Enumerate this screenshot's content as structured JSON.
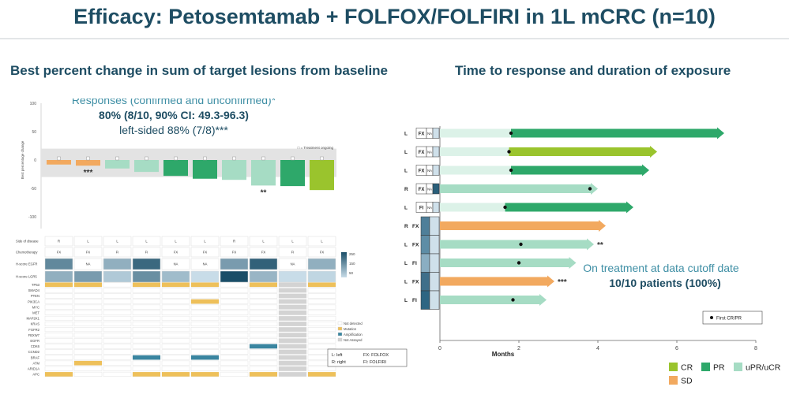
{
  "title": "Efficacy: Petosemtamab + FOLFOX/FOLFIRI in 1L mCRC (n=10)",
  "left_subtitle": "Best percent change in sum of target lesions from baseline",
  "right_subtitle": "Time to response and duration of exposure",
  "responses": {
    "heading": "Responses (confirmed and unconfirmed)*",
    "orr": "80% (8/10, 90% CI: 49.3-96.3)",
    "left_sided": "left-sided 88% (7/8)***"
  },
  "on_treatment": {
    "line1": "On treatment at data cutoff date",
    "line2": "10/10 patients (100%)"
  },
  "colors": {
    "CR": "#9ac42d",
    "PR": "#2ea86a",
    "uPR": "#a6dcc4",
    "SD": "#f2a95f",
    "title": "#1e4d63",
    "accent": "#3f8fa5",
    "mut_yellow": "#eec05a",
    "amp_teal": "#3a85a0",
    "not_assayed": "#d3d3d3"
  },
  "chart_data": [
    {
      "type": "bar",
      "title": "",
      "xlabel": "",
      "ylabel": "Best percentage change",
      "ylim": [
        -100,
        100
      ],
      "yticks": [
        "100",
        "50",
        "0",
        "-50",
        "-100"
      ],
      "values": [
        -8,
        -10,
        -15,
        -21,
        -28,
        -33,
        -35,
        -45,
        -46,
        -53
      ],
      "colors": [
        "SD",
        "SD",
        "uPR",
        "uPR",
        "PR",
        "PR",
        "uPR",
        "uPR",
        "PR",
        "CR"
      ],
      "annotations": [
        {
          "index": 1,
          "text": "***"
        },
        {
          "index": 7,
          "text": "**"
        }
      ],
      "ongoing_marker": "□ = Treatment ongoing",
      "reference_band": [
        -30,
        20
      ],
      "table": {
        "rows": [
          {
            "label": "Side of disease",
            "values": [
              "R",
              "L",
              "L",
              "L",
              "L",
              "L",
              "R",
              "L",
              "L",
              "L"
            ]
          },
          {
            "label": "Chemotherapy",
            "values": [
              "FX",
              "FX",
              "FI",
              "FI",
              "FX",
              "FX",
              "FX",
              "FX",
              "FI",
              "FX"
            ]
          },
          {
            "label": "H-score EGFR",
            "values": [
              180,
              "NA",
              120,
              230,
              "NA",
              "NA",
              150,
              240,
              "NA",
              120
            ]
          },
          {
            "label": "H-score LGR5",
            "values": [
              120,
              150,
              80,
              170,
              100,
              40,
              280,
              110,
              50,
              60
            ]
          }
        ],
        "scale_labels": [
          "250",
          "150",
          "50"
        ]
      },
      "genes": [
        "TP53",
        "SMAD4",
        "PTEN",
        "PIK3CA",
        "MYC",
        "MET",
        "MAP2K1",
        "KRAS",
        "FGFR2",
        "FBXW7",
        "EGFR",
        "CDK6",
        "CCND2",
        "BRAF",
        "ATM",
        "ARID1A",
        "APC"
      ],
      "alterations": [
        {
          "gene": "TP53",
          "patients": [
            0,
            1,
            3,
            4,
            5,
            7,
            9
          ],
          "type": "Mutation"
        },
        {
          "gene": "PIK3CA",
          "patients": [
            5
          ],
          "type": "Mutation"
        },
        {
          "gene": "CDK6",
          "patients": [
            7
          ],
          "type": "Amplification"
        },
        {
          "gene": "BRAF",
          "patients": [
            3,
            5
          ],
          "type": "Amplification"
        },
        {
          "gene": "ATM",
          "patients": [
            1
          ],
          "type": "Mutation"
        },
        {
          "gene": "APC",
          "patients": [
            0,
            3,
            4,
            5,
            7,
            9
          ],
          "type": "Mutation"
        }
      ],
      "not_assayed_patient": 8,
      "mutation_legend": [
        "Not detected",
        "Mutation",
        "Amplification",
        "Not Assayed"
      ],
      "abbrev": {
        "left": "L: left",
        "right": "R: right",
        "fx": "FX: FOLFOX",
        "fi": "FI: FOLFIRI"
      }
    },
    {
      "type": "bar",
      "subtype": "swimmer",
      "xlabel": "Months",
      "xlim": [
        0,
        8
      ],
      "xticks": [
        "0",
        "2",
        "4",
        "6",
        "8"
      ],
      "patients": [
        {
          "side": "L",
          "chemo": "FX",
          "egfr": "NA",
          "end": 7.2,
          "first": 1.8,
          "final": "PR",
          "annot": ""
        },
        {
          "side": "L",
          "chemo": "FX",
          "egfr": "NA",
          "end": 5.5,
          "first": 1.75,
          "final": "CR",
          "annot": ""
        },
        {
          "side": "L",
          "chemo": "FX",
          "egfr": "NA",
          "end": 5.3,
          "first": 1.8,
          "final": "PR",
          "annot": ""
        },
        {
          "side": "R",
          "chemo": "FX",
          "egfr": "NA",
          "end": 4.0,
          "first": 3.8,
          "final": "uPR",
          "annot": ""
        },
        {
          "side": "L",
          "chemo": "FI",
          "egfr": "NA",
          "end": 4.9,
          "first": 1.65,
          "final": "PR",
          "annot": ""
        },
        {
          "side": "R",
          "chemo": "FX",
          "egfr": "",
          "end": 4.2,
          "first": null,
          "final": "SD",
          "annot": ""
        },
        {
          "side": "L",
          "chemo": "FX",
          "egfr": "",
          "end": 3.9,
          "first": 2.05,
          "final": "uPR",
          "annot": "**"
        },
        {
          "side": "L",
          "chemo": "FI",
          "egfr": "",
          "end": 3.45,
          "first": 2.0,
          "final": "uPR",
          "annot": ""
        },
        {
          "side": "L",
          "chemo": "FX",
          "egfr": "",
          "end": 2.9,
          "first": null,
          "final": "SD",
          "annot": "***"
        },
        {
          "side": "L",
          "chemo": "FI",
          "egfr": "",
          "end": 2.7,
          "first": 1.85,
          "final": "uPR",
          "annot": ""
        }
      ],
      "first_marker_label": "First CR/PR",
      "legend": [
        "CR",
        "PR",
        "uPR/uCR",
        "SD"
      ]
    }
  ]
}
